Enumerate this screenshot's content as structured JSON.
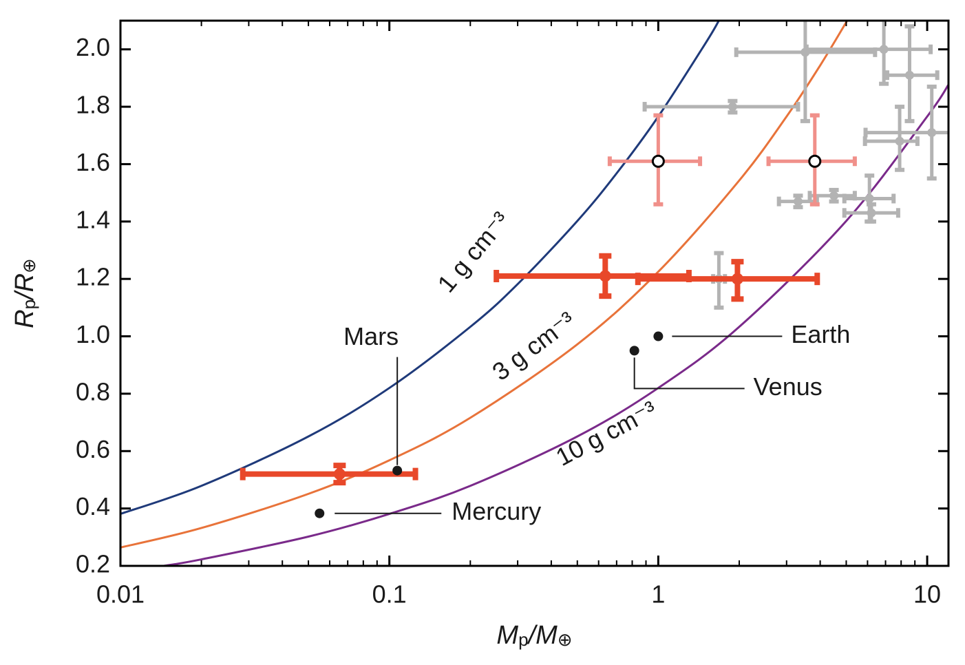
{
  "chart_data": {
    "type": "scatter",
    "xlabel": [
      "M",
      "p",
      "/M",
      "⊕"
    ],
    "ylabel": [
      "R",
      "p",
      "/R",
      "⊕"
    ],
    "xscale": "log",
    "xlim": [
      0.01,
      12
    ],
    "ylim": [
      0.2,
      2.1
    ],
    "xticks": [
      0.01,
      0.1,
      1,
      10
    ],
    "xminorticks": [
      0.02,
      0.03,
      0.04,
      0.05,
      0.06,
      0.07,
      0.08,
      0.09,
      0.2,
      0.3,
      0.4,
      0.5,
      0.6,
      0.7,
      0.8,
      0.9,
      2,
      3,
      4,
      5,
      6,
      7,
      8,
      9
    ],
    "yticks": [
      0.2,
      0.4,
      0.6,
      0.8,
      {
        "value": 1,
        "label": "1.0"
      },
      1.2,
      1.4,
      1.6,
      1.8,
      {
        "value": 2,
        "label": "2.0"
      }
    ],
    "curves": [
      {
        "label": "1 g cm⁻³",
        "color": "#1f3a7a",
        "x": [
          0.01,
          0.02,
          0.05,
          0.1,
          0.2,
          0.3,
          0.5,
          0.7,
          1,
          1.5,
          1.68
        ],
        "y": [
          0.381,
          0.479,
          0.651,
          0.82,
          1.033,
          1.182,
          1.402,
          1.568,
          1.766,
          2.022,
          2.1
        ]
      },
      {
        "label": "3 g cm⁻³",
        "color": "#e8733a",
        "x": [
          0.01,
          0.02,
          0.05,
          0.1,
          0.2,
          0.5,
          1,
          2,
          3,
          4,
          5.04
        ],
        "y": [
          0.264,
          0.332,
          0.451,
          0.568,
          0.716,
          0.972,
          1.225,
          1.543,
          1.766,
          1.944,
          2.1
        ]
      },
      {
        "label": "10 g cm⁻³",
        "color": "#7a2a8a",
        "x": [
          0.0145,
          0.02,
          0.05,
          0.1,
          0.2,
          0.5,
          1,
          2,
          5,
          10,
          12
        ],
        "y": [
          0.2,
          0.2226,
          0.302,
          0.381,
          0.479,
          0.651,
          0.82,
          1.033,
          1.402,
          1.766,
          1.877
        ]
      }
    ],
    "groups": [
      {
        "color": "#b3b3b3",
        "marker": "small-filled",
        "x": [
          3.52,
          6.9,
          8.6,
          1.89,
          7.9,
          10.4,
          3.31,
          4.5,
          6.1,
          6.2,
          1.68
        ],
        "y": [
          1.99,
          2.0,
          1.91,
          1.8,
          1.68,
          1.71,
          1.47,
          1.49,
          1.48,
          1.43,
          1.2
        ],
        "xlow": [
          1.95,
          3.56,
          7.1,
          0.89,
          5.87,
          5.9,
          2.81,
          3.66,
          4.92,
          4.92,
          1.6
        ],
        "xhigh": [
          6.4,
          10.3,
          10.9,
          3.31,
          9.2,
          12.2,
          3.89,
          5.38,
          7.5,
          7.8,
          1.77
        ],
        "ylow": [
          1.75,
          1.88,
          1.75,
          1.78,
          1.58,
          1.55,
          1.45,
          1.47,
          1.4,
          1.4,
          1.1
        ],
        "yhigh": [
          2.25,
          2.12,
          2.08,
          1.82,
          1.8,
          1.87,
          1.49,
          1.51,
          1.56,
          1.46,
          1.29
        ]
      },
      {
        "color": "#f0908a",
        "marker": "open-circle",
        "x": [
          1.0,
          3.82
        ],
        "y": [
          1.61,
          1.61
        ],
        "xlow": [
          0.66,
          2.57
        ],
        "xhigh": [
          1.43,
          5.38
        ],
        "ylow": [
          1.46,
          1.46
        ],
        "yhigh": [
          1.77,
          1.77
        ]
      },
      {
        "color": "#e8482a",
        "marker": "filled-thick",
        "x": [
          0.0653,
          0.635,
          1.97
        ],
        "y": [
          0.52,
          1.21,
          1.2
        ],
        "xlow": [
          0.0285,
          0.25,
          0.84
        ],
        "xhigh": [
          0.125,
          1.3,
          3.9
        ],
        "ylow": [
          0.49,
          1.14,
          1.13
        ],
        "yhigh": [
          0.55,
          1.28,
          1.26
        ]
      }
    ],
    "planets": {
      "labels": [
        "Mercury",
        "Venus",
        "Earth",
        "Mars"
      ],
      "x": [
        0.055,
        0.815,
        1.0,
        0.107
      ],
      "y": [
        0.383,
        0.95,
        1.0,
        0.532
      ],
      "color": "#1a1a1a"
    }
  }
}
